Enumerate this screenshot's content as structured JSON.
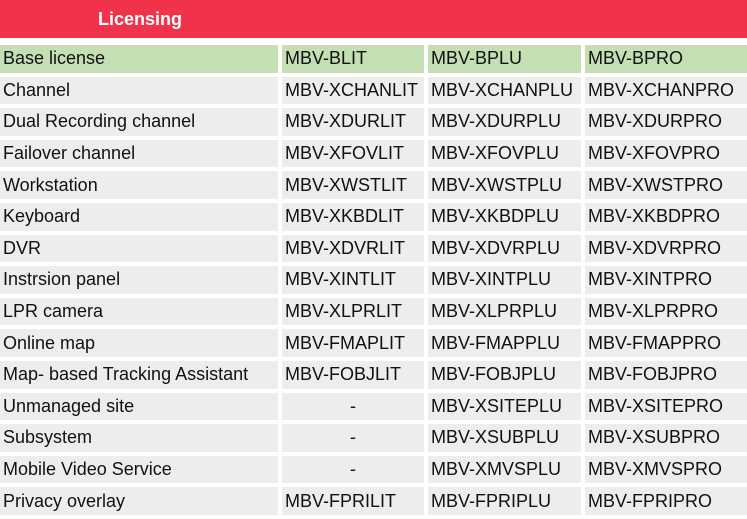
{
  "header": {
    "title": "Licensing"
  },
  "colors": {
    "title_bar": "#f0334b",
    "title_text": "#ffffff",
    "header_row": "#c5dfb4",
    "body_row": "#ededed"
  },
  "table": {
    "header": [
      "Base license",
      "MBV-BLIT",
      "MBV-BPLU",
      "MBV-BPRO"
    ],
    "rows": [
      [
        "Channel",
        "MBV-XCHANLIT",
        "MBV-XCHANPLU",
        "MBV-XCHANPRO"
      ],
      [
        "Dual Recording channel",
        "MBV-XDURLIT",
        "MBV-XDURPLU",
        "MBV-XDURPRO"
      ],
      [
        "Failover channel",
        "MBV-XFOVLIT",
        "MBV-XFOVPLU",
        "MBV-XFOVPRO"
      ],
      [
        "Workstation",
        "MBV-XWSTLIT",
        "MBV-XWSTPLU",
        "MBV-XWSTPRO"
      ],
      [
        "Keyboard",
        "MBV-XKBDLIT",
        "MBV-XKBDPLU",
        "MBV-XKBDPRO"
      ],
      [
        "DVR",
        "MBV-XDVRLIT",
        "MBV-XDVRPLU",
        "MBV-XDVRPRO"
      ],
      [
        "Instrsion panel",
        "MBV-XINTLIT",
        "MBV-XINTPLU",
        "MBV-XINTPRO"
      ],
      [
        "LPR camera",
        "MBV-XLPRLIT",
        "MBV-XLPRPLU",
        "MBV-XLPRPRO"
      ],
      [
        "Online map",
        "MBV-FMAPLIT",
        "MBV-FMAPPLU",
        "MBV-FMAPPRO"
      ],
      [
        "Map- based Tracking Assistant",
        "MBV-FOBJLIT",
        "MBV-FOBJPLU",
        "MBV-FOBJPRO"
      ],
      [
        "Unmanaged site",
        "-",
        "MBV-XSITEPLU",
        "MBV-XSITEPRO"
      ],
      [
        "Subsystem",
        "-",
        "MBV-XSUBPLU",
        "MBV-XSUBPRO"
      ],
      [
        "Mobile Video Service",
        "-",
        "MBV-XMVSPLU",
        "MBV-XMVSPRO"
      ],
      [
        "Privacy overlay",
        "MBV-FPRILIT",
        "MBV-FPRIPLU",
        "MBV-FPRIPRO"
      ]
    ]
  }
}
